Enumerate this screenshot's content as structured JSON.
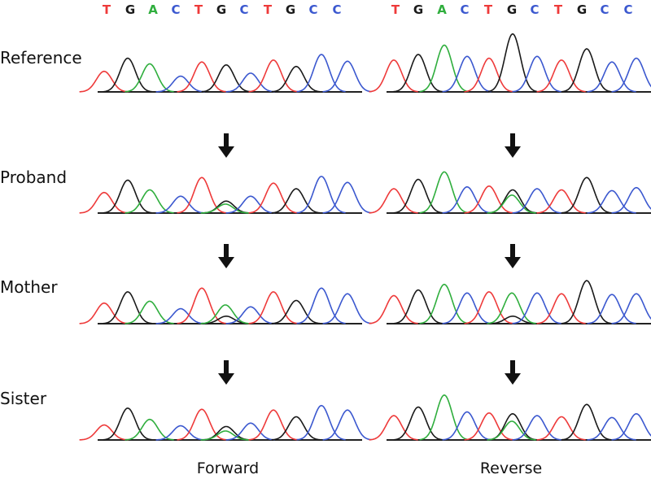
{
  "sequence": "TGACTGCTGCC",
  "base_colors": {
    "A": "#2fae3d",
    "C": "#3b58cf",
    "G": "#1a1a1a",
    "T": "#ee3a3a"
  },
  "columns": [
    {
      "label": "Forward",
      "sequence": "TGACTGCTGCC"
    },
    {
      "label": "Reverse",
      "sequence": "TGACTGCTGCC"
    }
  ],
  "rows": [
    {
      "label": "Reference",
      "variant_shown": false,
      "panels": [
        {
          "peaks": [
            {
              "b": "T",
              "h": 0.55
            },
            {
              "b": "G",
              "h": 0.9
            },
            {
              "b": "A",
              "h": 0.75
            },
            {
              "b": "C",
              "h": 0.42
            },
            {
              "b": "T",
              "h": 0.8
            },
            {
              "b": "G",
              "h": 0.72
            },
            {
              "b": "C",
              "h": 0.5
            },
            {
              "b": "T",
              "h": 0.85
            },
            {
              "b": "G",
              "h": 0.68
            },
            {
              "b": "C",
              "h": 1.0
            },
            {
              "b": "C",
              "h": 0.82
            }
          ]
        },
        {
          "peaks": [
            {
              "b": "T",
              "h": 0.85
            },
            {
              "b": "G",
              "h": 1.0
            },
            {
              "b": "A",
              "h": 1.25
            },
            {
              "b": "C",
              "h": 0.95
            },
            {
              "b": "T",
              "h": 0.9
            },
            {
              "b": "G",
              "h": 1.55
            },
            {
              "b": "C",
              "h": 0.95
            },
            {
              "b": "T",
              "h": 0.85
            },
            {
              "b": "G",
              "h": 1.15
            },
            {
              "b": "C",
              "h": 0.8
            },
            {
              "b": "C",
              "h": 0.9
            }
          ]
        }
      ]
    },
    {
      "label": "Proband",
      "variant_shown": true,
      "panels": [
        {
          "peaks": [
            {
              "b": "T",
              "h": 0.55
            },
            {
              "b": "G",
              "h": 0.88
            },
            {
              "b": "A",
              "h": 0.62
            },
            {
              "b": "C",
              "h": 0.45
            },
            {
              "b": "T",
              "h": 0.95
            },
            {
              "b": "G",
              "h": 0.32,
              "second": "A",
              "h2": 0.24
            },
            {
              "b": "C",
              "h": 0.45
            },
            {
              "b": "T",
              "h": 0.8
            },
            {
              "b": "G",
              "h": 0.65
            },
            {
              "b": "C",
              "h": 0.98
            },
            {
              "b": "C",
              "h": 0.82
            }
          ]
        },
        {
          "peaks": [
            {
              "b": "T",
              "h": 0.65
            },
            {
              "b": "G",
              "h": 0.9
            },
            {
              "b": "A",
              "h": 1.1
            },
            {
              "b": "C",
              "h": 0.7
            },
            {
              "b": "T",
              "h": 0.72
            },
            {
              "b": "G",
              "h": 0.62,
              "second": "A",
              "h2": 0.48
            },
            {
              "b": "C",
              "h": 0.65
            },
            {
              "b": "T",
              "h": 0.62
            },
            {
              "b": "G",
              "h": 0.95
            },
            {
              "b": "C",
              "h": 0.6
            },
            {
              "b": "C",
              "h": 0.68
            }
          ]
        }
      ]
    },
    {
      "label": "Mother",
      "variant_shown": true,
      "panels": [
        {
          "peaks": [
            {
              "b": "T",
              "h": 0.55
            },
            {
              "b": "G",
              "h": 0.85
            },
            {
              "b": "A",
              "h": 0.6
            },
            {
              "b": "C",
              "h": 0.4
            },
            {
              "b": "T",
              "h": 0.95
            },
            {
              "b": "G",
              "h": 0.2,
              "second": "A",
              "h2": 0.5
            },
            {
              "b": "C",
              "h": 0.45
            },
            {
              "b": "T",
              "h": 0.85
            },
            {
              "b": "G",
              "h": 0.62
            },
            {
              "b": "C",
              "h": 0.95
            },
            {
              "b": "C",
              "h": 0.8
            }
          ]
        },
        {
          "peaks": [
            {
              "b": "T",
              "h": 0.75
            },
            {
              "b": "G",
              "h": 0.9
            },
            {
              "b": "A",
              "h": 1.05
            },
            {
              "b": "C",
              "h": 0.82
            },
            {
              "b": "T",
              "h": 0.85
            },
            {
              "b": "G",
              "h": 0.2,
              "second": "A",
              "h2": 0.82
            },
            {
              "b": "C",
              "h": 0.82
            },
            {
              "b": "T",
              "h": 0.8
            },
            {
              "b": "G",
              "h": 1.15
            },
            {
              "b": "C",
              "h": 0.78
            },
            {
              "b": "C",
              "h": 0.8
            }
          ]
        }
      ]
    },
    {
      "label": "Sister",
      "variant_shown": true,
      "panels": [
        {
          "peaks": [
            {
              "b": "T",
              "h": 0.4
            },
            {
              "b": "G",
              "h": 0.85
            },
            {
              "b": "A",
              "h": 0.55
            },
            {
              "b": "C",
              "h": 0.38
            },
            {
              "b": "T",
              "h": 0.82
            },
            {
              "b": "G",
              "h": 0.36,
              "second": "A",
              "h2": 0.24
            },
            {
              "b": "C",
              "h": 0.45
            },
            {
              "b": "T",
              "h": 0.8
            },
            {
              "b": "G",
              "h": 0.62
            },
            {
              "b": "C",
              "h": 0.92
            },
            {
              "b": "C",
              "h": 0.8
            }
          ]
        },
        {
          "peaks": [
            {
              "b": "T",
              "h": 0.65
            },
            {
              "b": "G",
              "h": 0.88
            },
            {
              "b": "A",
              "h": 1.2
            },
            {
              "b": "C",
              "h": 0.75
            },
            {
              "b": "T",
              "h": 0.72
            },
            {
              "b": "G",
              "h": 0.7,
              "second": "A",
              "h2": 0.5
            },
            {
              "b": "C",
              "h": 0.65
            },
            {
              "b": "T",
              "h": 0.62
            },
            {
              "b": "G",
              "h": 0.95
            },
            {
              "b": "C",
              "h": 0.6
            },
            {
              "b": "C",
              "h": 0.7
            }
          ]
        }
      ]
    }
  ]
}
